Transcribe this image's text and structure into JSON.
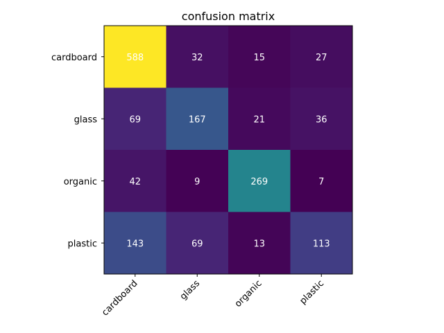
{
  "chart_data": {
    "type": "heatmap",
    "title": "confusion matrix",
    "xlabel": "",
    "ylabel": "",
    "x_categories": [
      "cardboard",
      "glass",
      "organic",
      "plastic"
    ],
    "y_categories": [
      "cardboard",
      "glass",
      "organic",
      "plastic"
    ],
    "values": [
      [
        588,
        32,
        15,
        27
      ],
      [
        69,
        167,
        21,
        36
      ],
      [
        42,
        9,
        269,
        7
      ],
      [
        143,
        69,
        13,
        113
      ]
    ],
    "colormap": "viridis",
    "color_range": [
      7,
      588
    ],
    "grid": false,
    "legend": "none",
    "cell_text_colors": {
      "on_dark": "#ffffff",
      "on_light": "#ffffff"
    }
  }
}
